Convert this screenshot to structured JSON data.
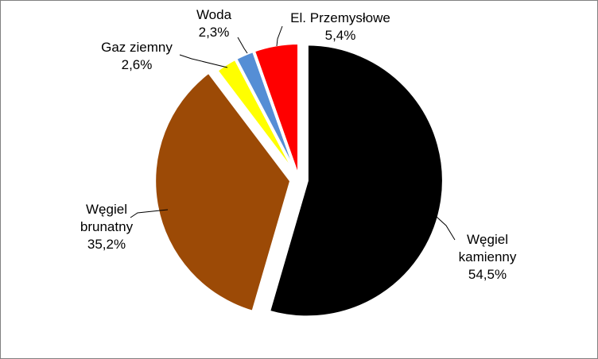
{
  "chart_data": {
    "type": "pie",
    "title": "",
    "legend": "none",
    "slices": [
      {
        "name": "Węgiel kamienny",
        "label_lines": [
          "Węgiel",
          "kamienny"
        ],
        "value": 54.5,
        "value_label": "54,5%",
        "color": "#000000",
        "exploded": true
      },
      {
        "name": "Węgiel brunatny",
        "label_lines": [
          "Węgiel",
          "brunatny"
        ],
        "value": 35.2,
        "value_label": "35,2%",
        "color": "#9C4A06",
        "exploded": true
      },
      {
        "name": "Gaz ziemny",
        "label_lines": [
          "Gaz ziemny"
        ],
        "value": 2.6,
        "value_label": "2,6%",
        "color": "#FFFF00",
        "exploded": false
      },
      {
        "name": "Woda",
        "label_lines": [
          "Woda"
        ],
        "value": 2.3,
        "value_label": "2,3%",
        "color": "#558ED5",
        "exploded": false
      },
      {
        "name": "El. Przemysłowe",
        "label_lines": [
          "El. Przemysłowe"
        ],
        "value": 5.4,
        "value_label": "5,4%",
        "color": "#FF0000",
        "exploded": false
      }
    ]
  }
}
